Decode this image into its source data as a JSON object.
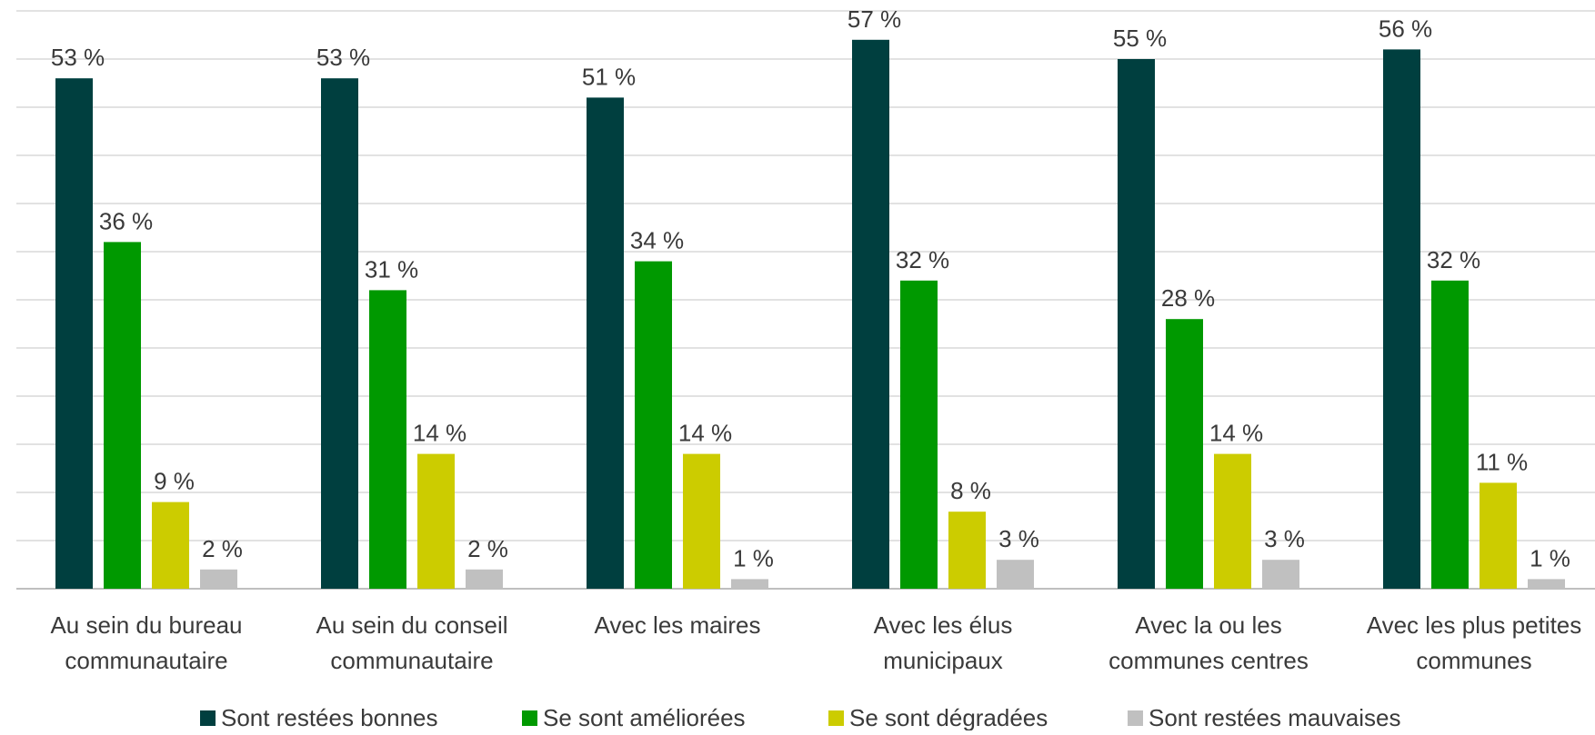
{
  "chart_data": {
    "type": "bar",
    "categories": [
      [
        "Au sein du bureau",
        "communautaire"
      ],
      [
        "Au sein du conseil",
        "communautaire"
      ],
      [
        "Avec les maires"
      ],
      [
        "Avec les élus",
        "municipaux"
      ],
      [
        "Avec la ou les",
        "communes centres"
      ],
      [
        "Avec les plus petites",
        "communes"
      ]
    ],
    "series": [
      {
        "name": "Sont restées bonnes",
        "color": "#003f3f",
        "values": [
          53,
          53,
          51,
          57,
          55,
          56
        ]
      },
      {
        "name": "Se sont améliorées",
        "color": "#009900",
        "values": [
          36,
          31,
          34,
          32,
          28,
          32
        ]
      },
      {
        "name": "Se sont dégradées",
        "color": "#cccc00",
        "values": [
          9,
          14,
          14,
          8,
          14,
          11
        ]
      },
      {
        "name": "Sont restées mauvaises",
        "color": "#c0c0c0",
        "values": [
          2,
          2,
          1,
          3,
          3,
          1
        ]
      }
    ],
    "value_suffix": " %",
    "ylim": [
      0,
      60
    ],
    "grid": true,
    "legend_position": "bottom",
    "title": "",
    "xlabel": "",
    "ylabel": ""
  }
}
